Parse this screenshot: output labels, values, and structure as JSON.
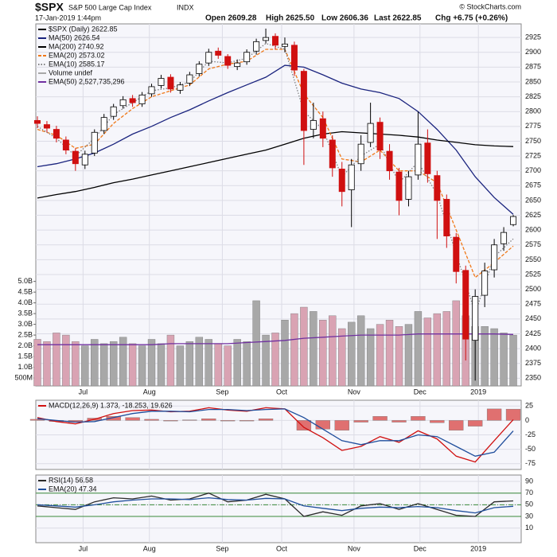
{
  "chart_data": [
    {
      "type": "candlestick",
      "title": "$SPX",
      "subtitle": "S&P 500 Large Cap Index",
      "exchange": "INDX",
      "date": "17-Jan-2019 1:44pm",
      "source": "© StockCharts.com",
      "quote": [
        "Open 2609.28",
        "High 2625.50",
        "Low 2606.36",
        "Last 2622.85",
        "Chg +6.75 (+0.26%)"
      ],
      "name": "$SPX (Daily) 2622.85",
      "color_up": "#ffffff",
      "color_down": "#d01010",
      "x": [
        0,
        3,
        6,
        9,
        12,
        15,
        18,
        21,
        24,
        27,
        30,
        33,
        36,
        39,
        42,
        45,
        48,
        51,
        54,
        57,
        60,
        63,
        66,
        69,
        72,
        75,
        78,
        81,
        84,
        87,
        90,
        93,
        96,
        99,
        102,
        105,
        108,
        111,
        114,
        117,
        120,
        123,
        126,
        129,
        132,
        135,
        138,
        141,
        144,
        147,
        150
      ],
      "open": [
        2785,
        2778,
        2770,
        2752,
        2733,
        2710,
        2730,
        2768,
        2792,
        2810,
        2822,
        2813,
        2830,
        2844,
        2858,
        2836,
        2848,
        2864,
        2882,
        2902,
        2893,
        2876,
        2884,
        2902,
        2920,
        2927,
        2910,
        2912,
        2868,
        2770,
        2788,
        2752,
        2703,
        2668,
        2712,
        2748,
        2782,
        2733,
        2698,
        2652,
        2693,
        2747,
        2692,
        2652,
        2588,
        2532,
        2414,
        2490,
        2533,
        2577,
        2609.28
      ],
      "high": [
        2792,
        2784,
        2776,
        2758,
        2738,
        2734,
        2770,
        2796,
        2813,
        2826,
        2828,
        2833,
        2847,
        2862,
        2863,
        2850,
        2867,
        2885,
        2906,
        2908,
        2897,
        2888,
        2905,
        2923,
        2940,
        2932,
        2925,
        2918,
        2872,
        2815,
        2800,
        2760,
        2715,
        2720,
        2760,
        2815,
        2790,
        2745,
        2705,
        2700,
        2800,
        2770,
        2700,
        2660,
        2595,
        2540,
        2500,
        2545,
        2585,
        2605,
        2625.5
      ],
      "low": [
        2772,
        2765,
        2748,
        2728,
        2700,
        2703,
        2725,
        2762,
        2786,
        2805,
        2808,
        2808,
        2825,
        2839,
        2832,
        2830,
        2843,
        2859,
        2877,
        2889,
        2872,
        2870,
        2879,
        2896,
        2915,
        2905,
        2900,
        2860,
        2710,
        2755,
        2740,
        2690,
        2640,
        2605,
        2700,
        2740,
        2720,
        2685,
        2625,
        2640,
        2685,
        2680,
        2585,
        2570,
        2510,
        2380,
        2346,
        2470,
        2520,
        2565,
        2606.36
      ],
      "close": [
        2780,
        2772,
        2755,
        2735,
        2712,
        2728,
        2765,
        2790,
        2808,
        2820,
        2815,
        2828,
        2842,
        2856,
        2838,
        2845,
        2862,
        2880,
        2900,
        2895,
        2878,
        2882,
        2900,
        2918,
        2925,
        2912,
        2914,
        2870,
        2768,
        2785,
        2755,
        2705,
        2665,
        2710,
        2745,
        2780,
        2735,
        2700,
        2650,
        2690,
        2745,
        2695,
        2650,
        2590,
        2530,
        2416,
        2488,
        2531,
        2575,
        2596,
        2622.85
      ],
      "xlim": [
        -0.5,
        152.5
      ],
      "ylim": [
        2337,
        2948
      ],
      "yticks": [
        2350,
        2375,
        2400,
        2425,
        2450,
        2475,
        2500,
        2525,
        2550,
        2575,
        2600,
        2625,
        2650,
        2675,
        2700,
        2725,
        2750,
        2775,
        2800,
        2825,
        2850,
        2875,
        2900,
        2925
      ],
      "y2lim": [
        0.13,
        17
      ],
      "y2ticks": [
        {
          "value": 0.5,
          "label": "500M"
        },
        {
          "value": 1.0,
          "label": "1.0B"
        },
        {
          "value": 1.5,
          "label": "1.5B"
        },
        {
          "value": 2.0,
          "label": "2.0B"
        },
        {
          "value": 2.5,
          "label": "2.5B"
        },
        {
          "value": 3.0,
          "label": "3.0B"
        },
        {
          "value": 3.5,
          "label": "3.5B"
        },
        {
          "value": 4.0,
          "label": "4.0B"
        },
        {
          "value": 4.5,
          "label": "4.5B"
        },
        {
          "value": 5.0,
          "label": "5.0B"
        }
      ],
      "xticks": [
        {
          "value": 14.4,
          "label": "Jul"
        },
        {
          "value": 35.3,
          "label": "Aug"
        },
        {
          "value": 58.3,
          "label": "Sep"
        },
        {
          "value": 77,
          "label": "Oct"
        },
        {
          "value": 99.8,
          "label": "Nov"
        },
        {
          "value": 120.6,
          "label": "Dec"
        },
        {
          "value": 139,
          "label": "2019"
        }
      ],
      "grid": true,
      "series": [
        {
          "name": "MA(50) 2626.54",
          "color": "#1a237e",
          "style": "line",
          "x": [
            0,
            6,
            12,
            18,
            24,
            30,
            36,
            42,
            48,
            54,
            60,
            66,
            72,
            78,
            84,
            90,
            96,
            102,
            108,
            114,
            120,
            126,
            132,
            138,
            144,
            150
          ],
          "values": [
            2707,
            2712,
            2720,
            2730,
            2745,
            2762,
            2775,
            2790,
            2803,
            2818,
            2832,
            2845,
            2858,
            2878,
            2875,
            2862,
            2848,
            2838,
            2832,
            2822,
            2800,
            2770,
            2735,
            2690,
            2655,
            2626.54
          ]
        },
        {
          "name": "MA(200) 2740.92",
          "color": "#000000",
          "style": "line",
          "x": [
            0,
            6,
            12,
            18,
            24,
            30,
            36,
            42,
            48,
            54,
            60,
            66,
            72,
            78,
            84,
            90,
            96,
            102,
            108,
            114,
            120,
            126,
            132,
            138,
            144,
            150
          ],
          "values": [
            2654,
            2660,
            2665,
            2672,
            2680,
            2686,
            2693,
            2700,
            2707,
            2714,
            2721,
            2728,
            2735,
            2745,
            2755,
            2762,
            2766,
            2764,
            2762,
            2760,
            2757,
            2752,
            2748,
            2744,
            2742,
            2740.92
          ]
        },
        {
          "name": "EMA(20) 2573.02",
          "color": "#f07818",
          "style": "dashed",
          "x": [
            0,
            6,
            12,
            18,
            24,
            30,
            36,
            42,
            48,
            54,
            60,
            66,
            72,
            78,
            84,
            90,
            96,
            102,
            108,
            114,
            120,
            126,
            132,
            138,
            144,
            150
          ],
          "values": [
            2770,
            2760,
            2738,
            2745,
            2780,
            2805,
            2825,
            2835,
            2845,
            2872,
            2880,
            2885,
            2905,
            2905,
            2830,
            2790,
            2720,
            2715,
            2735,
            2700,
            2700,
            2680,
            2600,
            2520,
            2545,
            2573.02
          ]
        },
        {
          "name": "EMA(10) 2585.17",
          "color": "#808080",
          "style": "dotted",
          "x": [
            0,
            6,
            12,
            18,
            24,
            30,
            36,
            42,
            48,
            54,
            60,
            66,
            72,
            78,
            84,
            90,
            96,
            102,
            108,
            114,
            120,
            126,
            132,
            138,
            144,
            150
          ],
          "values": [
            2775,
            2755,
            2725,
            2755,
            2795,
            2815,
            2835,
            2840,
            2850,
            2885,
            2882,
            2890,
            2915,
            2905,
            2800,
            2770,
            2690,
            2725,
            2745,
            2680,
            2715,
            2660,
            2560,
            2460,
            2555,
            2585.17
          ]
        },
        {
          "name": "Volume undef",
          "color": "#a8a8a8",
          "down_color": "#d9a3b3",
          "style": "bar",
          "axis": "y2",
          "x": [
            0,
            3,
            6,
            9,
            12,
            15,
            18,
            21,
            24,
            27,
            30,
            33,
            36,
            39,
            42,
            45,
            48,
            51,
            54,
            57,
            60,
            63,
            66,
            69,
            72,
            75,
            78,
            81,
            84,
            87,
            90,
            93,
            96,
            99,
            102,
            105,
            108,
            111,
            114,
            117,
            120,
            123,
            126,
            129,
            132,
            135,
            138,
            141,
            144,
            147,
            150
          ],
          "values": [
            2.3,
            2.2,
            2.6,
            2.5,
            2.2,
            2.0,
            2.3,
            2.1,
            2.2,
            2.4,
            2.1,
            2.0,
            2.3,
            2.1,
            2.5,
            2.0,
            2.2,
            2.4,
            2.3,
            2.1,
            2.0,
            2.3,
            2.2,
            4.1,
            2.5,
            2.6,
            3.2,
            3.5,
            3.8,
            3.6,
            3.2,
            3.4,
            2.8,
            3.1,
            3.4,
            2.8,
            3.0,
            3.2,
            2.9,
            3.0,
            3.6,
            3.3,
            3.5,
            3.6,
            4.1,
            3.4,
            2.9,
            2.9,
            2.8,
            2.6,
            2.5
          ]
        },
        {
          "name": "EMA(50) 2,527,735,296",
          "color": "#7030a0",
          "style": "line",
          "axis": "y2",
          "x": [
            0,
            6,
            12,
            18,
            24,
            30,
            36,
            42,
            48,
            54,
            60,
            66,
            72,
            78,
            84,
            90,
            96,
            102,
            108,
            114,
            120,
            126,
            132,
            138,
            144,
            150
          ],
          "values": [
            2.05,
            2.05,
            2.05,
            2.05,
            2.05,
            2.05,
            2.05,
            2.1,
            2.1,
            2.1,
            2.1,
            2.15,
            2.2,
            2.25,
            2.35,
            2.4,
            2.45,
            2.5,
            2.5,
            2.5,
            2.55,
            2.55,
            2.55,
            2.55,
            2.55,
            2.53
          ]
        }
      ]
    },
    {
      "type": "line",
      "title": "MACD(12,26,9) 1.373, -18.253, 19.626",
      "xlim": [
        -0.5,
        152.5
      ],
      "ylim": [
        -85,
        35
      ],
      "yticks": [
        25,
        0,
        -25,
        -50,
        -75
      ],
      "grid": true,
      "x": [
        0,
        6,
        12,
        18,
        24,
        30,
        36,
        42,
        48,
        54,
        60,
        66,
        72,
        78,
        84,
        90,
        96,
        102,
        108,
        114,
        120,
        126,
        132,
        138,
        144,
        150
      ],
      "series": [
        {
          "color": "#e07070",
          "style": "bar",
          "values": [
            2,
            -2,
            -3,
            4,
            7,
            5,
            2,
            -1,
            1,
            3,
            -1,
            -1,
            3,
            0,
            -17,
            -15,
            -17,
            -3,
            7,
            -3,
            7,
            -4,
            -17,
            -10,
            20,
            19.626
          ]
        },
        {
          "color": "#d01010",
          "style": "line",
          "values": [
            5,
            -2,
            -6,
            2,
            12,
            17,
            18,
            15,
            16,
            22,
            18,
            16,
            22,
            20,
            -12,
            -30,
            -52,
            -45,
            -28,
            -38,
            -18,
            -32,
            -62,
            -72,
            -35,
            1.373
          ]
        },
        {
          "color": "#1f4e9c",
          "style": "line",
          "values": [
            3,
            0,
            -3,
            -2,
            5,
            12,
            16,
            16,
            15,
            19,
            19,
            17,
            19,
            20,
            5,
            -15,
            -35,
            -42,
            -35,
            -35,
            -25,
            -28,
            -45,
            -62,
            -55,
            -18.253
          ]
        }
      ]
    },
    {
      "type": "line",
      "xlim": [
        -0.5,
        152.5
      ],
      "ylim": [
        -15,
        101
      ],
      "yticks": [
        90,
        70,
        50,
        30,
        10
      ],
      "grid": true,
      "levels": [
        70,
        50,
        30
      ],
      "level_color": "#3a8a3a",
      "x": [
        0,
        6,
        12,
        18,
        24,
        30,
        36,
        42,
        48,
        54,
        60,
        66,
        72,
        78,
        84,
        90,
        96,
        102,
        108,
        114,
        120,
        126,
        132,
        138,
        144,
        150
      ],
      "xticks": [
        {
          "value": 14.4,
          "label": "Jul"
        },
        {
          "value": 35.3,
          "label": "Aug"
        },
        {
          "value": 58.3,
          "label": "Sep"
        },
        {
          "value": 77,
          "label": "Oct"
        },
        {
          "value": 99.8,
          "label": "Nov"
        },
        {
          "value": 120.6,
          "label": "Dec"
        },
        {
          "value": 139,
          "label": "2019"
        }
      ],
      "series": [
        {
          "name": "RSI(14) 56.58",
          "color": "#2a2a2a",
          "style": "line",
          "values": [
            48,
            45,
            42,
            55,
            62,
            60,
            65,
            58,
            60,
            70,
            55,
            58,
            68,
            60,
            30,
            38,
            32,
            48,
            52,
            42,
            52,
            42,
            32,
            30,
            55,
            56.58
          ]
        },
        {
          "name": "EMA(20) 47.34",
          "color": "#1f4e9c",
          "style": "line",
          "values": [
            50,
            48,
            46,
            50,
            55,
            58,
            60,
            60,
            59,
            62,
            59,
            58,
            61,
            60,
            48,
            44,
            40,
            44,
            46,
            45,
            47,
            45,
            40,
            36,
            45,
            47.34
          ]
        }
      ]
    }
  ]
}
